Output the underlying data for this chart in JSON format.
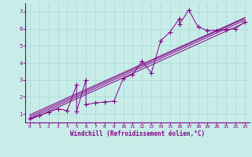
{
  "xlabel": "Windchill (Refroidissement éolien,°C)",
  "bg_color": "#c8ece8",
  "line_color": "#880088",
  "grid_color": "#aadddd",
  "xlim": [
    -0.5,
    23.5
  ],
  "ylim": [
    0.5,
    7.5
  ],
  "xticks": [
    0,
    1,
    2,
    3,
    4,
    5,
    6,
    7,
    8,
    9,
    10,
    11,
    12,
    13,
    14,
    15,
    16,
    17,
    18,
    19,
    20,
    21,
    22,
    23
  ],
  "yticks": [
    1,
    2,
    3,
    4,
    5,
    6,
    7
  ],
  "scatter_x": [
    0,
    1,
    2,
    3,
    4,
    5,
    5,
    6,
    6,
    7,
    8,
    9,
    10,
    11,
    12,
    13,
    14,
    15,
    16,
    16,
    17,
    18,
    19,
    20,
    21,
    22,
    23
  ],
  "scatter_y": [
    0.75,
    0.9,
    1.1,
    1.3,
    1.2,
    2.7,
    1.15,
    3.0,
    1.55,
    1.65,
    1.7,
    1.75,
    3.1,
    3.3,
    4.1,
    3.4,
    5.3,
    5.8,
    6.6,
    6.25,
    7.1,
    6.1,
    5.9,
    5.9,
    5.95,
    6.0,
    6.4
  ],
  "reg_lines": [
    {
      "x": [
        0,
        23
      ],
      "y": [
        0.65,
        6.35
      ]
    },
    {
      "x": [
        0,
        23
      ],
      "y": [
        0.75,
        6.5
      ]
    },
    {
      "x": [
        0,
        23
      ],
      "y": [
        0.85,
        6.6
      ]
    },
    {
      "x": [
        0,
        23
      ],
      "y": [
        0.95,
        6.65
      ]
    }
  ],
  "marker": "+",
  "markersize": 4.0,
  "linewidth": 0.7
}
